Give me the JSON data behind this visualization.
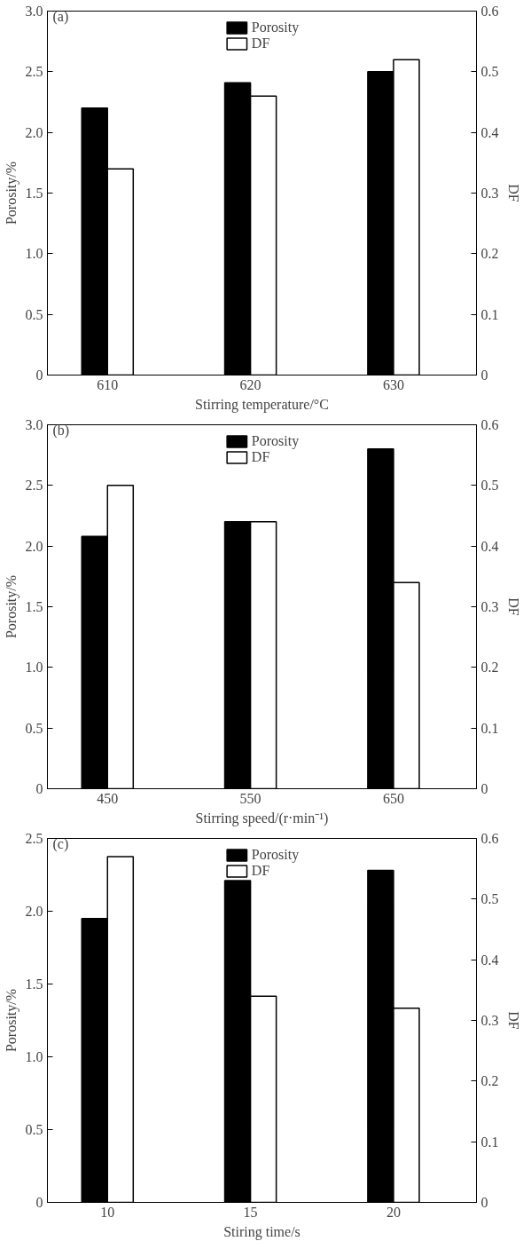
{
  "chart_data": [
    {
      "type": "bar",
      "categories": [
        "610",
        "620",
        "630"
      ],
      "xlabel": "Stirring temperature/°C",
      "ylabel": "Porosity/%",
      "y2label": "DF",
      "annotations": [
        "(a)"
      ],
      "legend": "top",
      "grid": false,
      "ylim": [
        0,
        3
      ],
      "yticks": [
        0,
        0.5,
        {
          "value": 1,
          "label": "1.0"
        },
        1.5,
        {
          "value": 2,
          "label": "2.0"
        },
        2.5,
        {
          "value": 3,
          "label": "3.0"
        }
      ],
      "y2lim": [
        0,
        0.6
      ],
      "y2ticks": [
        0,
        0.1,
        0.2,
        0.3,
        0.4,
        0.5,
        0.6
      ],
      "series": [
        {
          "name": "Porosity",
          "color": "#000000",
          "values": [
            2.2,
            2.41,
            2.5
          ]
        },
        {
          "name": "DF",
          "color": "#ffffff",
          "axis": "y2",
          "values": [
            0.34,
            0.46,
            0.52
          ]
        }
      ]
    },
    {
      "type": "bar",
      "categories": [
        "450",
        "550",
        "650"
      ],
      "xlabel": "Stirring speed/(r·min⁻¹)",
      "ylabel": "Porosity/%",
      "y2label": "DF",
      "annotations": [
        "(b)"
      ],
      "legend": "top",
      "grid": false,
      "ylim": [
        0,
        3
      ],
      "yticks": [
        0,
        0.5,
        {
          "value": 1,
          "label": "1.0"
        },
        1.5,
        {
          "value": 2,
          "label": "2.0"
        },
        2.5,
        {
          "value": 3,
          "label": "3.0"
        }
      ],
      "y2lim": [
        0,
        0.6
      ],
      "y2ticks": [
        0,
        0.1,
        0.2,
        0.3,
        0.4,
        0.5,
        0.6
      ],
      "series": [
        {
          "name": "Porosity",
          "color": "#000000",
          "values": [
            2.08,
            2.2,
            2.8
          ]
        },
        {
          "name": "DF",
          "color": "#ffffff",
          "axis": "y2",
          "values": [
            0.5,
            0.44,
            0.34
          ]
        }
      ]
    },
    {
      "type": "bar",
      "categories": [
        "10",
        "15",
        "20"
      ],
      "xlabel": "Stiring time/s",
      "ylabel": "Porosity/%",
      "y2label": "DF",
      "annotations": [
        "(c)"
      ],
      "legend": "top",
      "grid": false,
      "ylim": [
        0,
        2.5
      ],
      "yticks": [
        0,
        0.5,
        {
          "value": 1,
          "label": "1.0"
        },
        1.5,
        {
          "value": 2,
          "label": "2.0"
        },
        2.5
      ],
      "y2lim": [
        0,
        0.6
      ],
      "y2ticks": [
        0,
        0.1,
        0.2,
        0.3,
        0.4,
        0.5,
        0.6
      ],
      "series": [
        {
          "name": "Porosity",
          "color": "#000000",
          "values": [
            1.95,
            2.21,
            2.28
          ]
        },
        {
          "name": "DF",
          "color": "#ffffff",
          "axis": "y2",
          "values": [
            0.57,
            0.34,
            0.32
          ]
        }
      ]
    }
  ]
}
